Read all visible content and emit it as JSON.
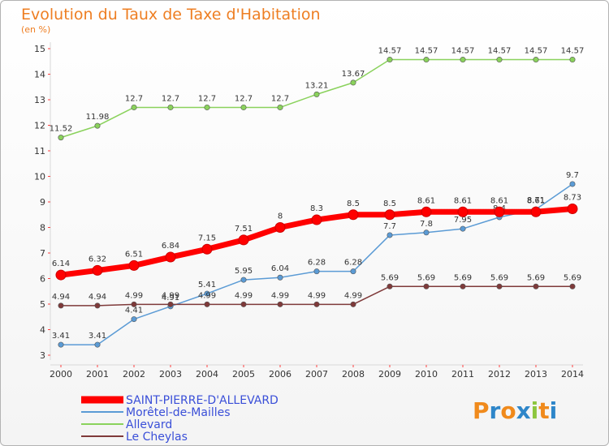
{
  "chart_data": {
    "type": "line",
    "title": "Evolution du Taux de Taxe d'Habitation",
    "subtitle": "(en %)",
    "x": [
      "2000",
      "2001",
      "2002",
      "2003",
      "2004",
      "2005",
      "2006",
      "2007",
      "2008",
      "2009",
      "2010",
      "2011",
      "2012",
      "2013",
      "2014"
    ],
    "ylim": [
      3,
      15
    ],
    "yticks": [
      "3",
      "4",
      "5",
      "6",
      "7",
      "8",
      "9",
      "10",
      "11",
      "12",
      "13",
      "14",
      "15"
    ],
    "grid": false,
    "legend_position": "bottom-left",
    "series": [
      {
        "name": "SAINT-PIERRE-D'ALLEVARD",
        "color": "#ff0000",
        "values": [
          6.14,
          6.32,
          6.51,
          6.84,
          7.15,
          7.51,
          8,
          8.3,
          8.5,
          8.5,
          8.61,
          8.61,
          8.61,
          8.61,
          8.73
        ],
        "labels": [
          "6.14",
          "6.32",
          "6.51",
          "6.84",
          "7.15",
          "7.51",
          "8",
          "8.3",
          "8.5",
          "8.5",
          "8.61",
          "8.61",
          "8.61",
          "8.61",
          "8.73"
        ]
      },
      {
        "name": "Morêtel-de-Mailles",
        "color": "#5b9bd5",
        "values": [
          3.41,
          3.41,
          4.41,
          4.91,
          5.41,
          5.95,
          6.04,
          6.28,
          6.28,
          7.7,
          7.8,
          7.95,
          8.4,
          8.71,
          9.7
        ],
        "labels": [
          "3.41",
          "3.41",
          "4.41",
          "4.91",
          "5.41",
          "5.95",
          "6.04",
          "6.28",
          "6.28",
          "7.7",
          "7.8",
          "7.95",
          "8.4",
          "8.71",
          "9.7"
        ]
      },
      {
        "name": "Allevard",
        "color": "#8ad25c",
        "values": [
          11.52,
          11.98,
          12.7,
          12.7,
          12.7,
          12.7,
          12.7,
          13.21,
          13.67,
          14.57,
          14.57,
          14.57,
          14.57,
          14.57,
          14.57
        ],
        "labels": [
          "11.52",
          "11.98",
          "12.7",
          "12.7",
          "12.7",
          "12.7",
          "12.7",
          "13.21",
          "13.67",
          "14.57",
          "14.57",
          "14.57",
          "14.57",
          "14.57",
          "14.57"
        ]
      },
      {
        "name": "Le Cheylas",
        "color": "#7f3a3a",
        "values": [
          4.94,
          4.94,
          4.99,
          4.99,
          4.99,
          4.99,
          4.99,
          4.99,
          4.99,
          5.69,
          5.69,
          5.69,
          5.69,
          5.69,
          5.69
        ],
        "labels": [
          "4.94",
          "4.94",
          "4.99",
          "4.99",
          "4.99",
          "4.99",
          "4.99",
          "4.99",
          "4.99",
          "5.69",
          "5.69",
          "5.69",
          "5.69",
          "5.69",
          "5.69"
        ]
      }
    ]
  },
  "logo": {
    "text": "Proxiti",
    "letters": [
      "P",
      "r",
      "o",
      "x",
      "i",
      "t",
      "i"
    ],
    "colors": [
      "#f08a1c",
      "#2e86c9",
      "#f08a1c",
      "#2e86c9",
      "#8cc63f",
      "#f08a1c",
      "#2e86c9"
    ]
  }
}
